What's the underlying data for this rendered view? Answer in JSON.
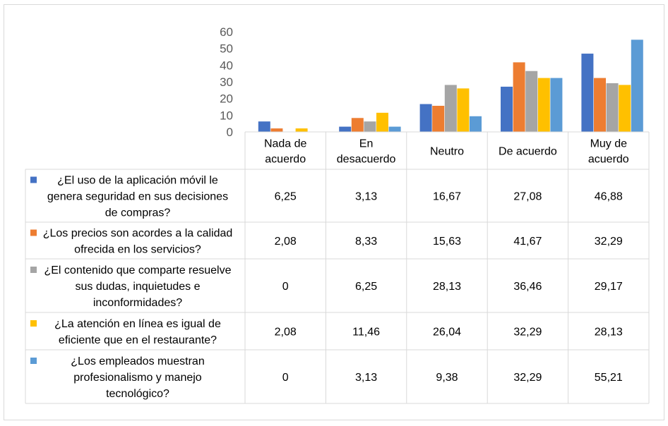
{
  "chart_data": {
    "type": "bar",
    "categories": [
      [
        "Nada de",
        "acuerdo"
      ],
      [
        "En",
        "desacuerdo"
      ],
      [
        "Neutro"
      ],
      [
        "De acuerdo"
      ],
      [
        "Muy de",
        "acuerdo"
      ]
    ],
    "ylim": [
      0,
      60
    ],
    "yticks": [
      "0",
      "10",
      "20",
      "30",
      "40",
      "50",
      "60"
    ],
    "grid": false,
    "legend": "data-table",
    "series": [
      {
        "name": [
          "¿El uso de la aplicación móvil le",
          "genera seguridad en sus decisiones",
          "de compras?"
        ],
        "color": "#4472C4",
        "values": [
          6.25,
          3.13,
          16.67,
          27.08,
          46.88
        ],
        "labels": [
          "6,25",
          "3,13",
          "16,67",
          "27,08",
          "46,88"
        ]
      },
      {
        "name": [
          "¿Los precios son acordes a la calidad",
          "ofrecida en los servicios?"
        ],
        "color": "#ED7D31",
        "values": [
          2.08,
          8.33,
          15.63,
          41.67,
          32.29
        ],
        "labels": [
          "2,08",
          "8,33",
          "15,63",
          "41,67",
          "32,29"
        ]
      },
      {
        "name": [
          "¿El contenido que comparte resuelve",
          "sus dudas, inquietudes e",
          "inconformidades?"
        ],
        "color": "#A5A5A5",
        "values": [
          0,
          6.25,
          28.13,
          36.46,
          29.17
        ],
        "labels": [
          "0",
          "6,25",
          "28,13",
          "36,46",
          "29,17"
        ]
      },
      {
        "name": [
          "¿La atención en línea es igual de",
          "eficiente que en el restaurante?"
        ],
        "color": "#FFC000",
        "values": [
          2.08,
          11.46,
          26.04,
          32.29,
          28.13
        ],
        "labels": [
          "2,08",
          "11,46",
          "26,04",
          "32,29",
          "28,13"
        ]
      },
      {
        "name": [
          "¿Los empleados muestran",
          "profesionalismo y manejo",
          "tecnológico?"
        ],
        "color": "#5B9BD5",
        "values": [
          0,
          3.13,
          9.38,
          32.29,
          55.21
        ],
        "labels": [
          "0",
          "3,13",
          "9,38",
          "32,29",
          "55,21"
        ]
      }
    ]
  }
}
